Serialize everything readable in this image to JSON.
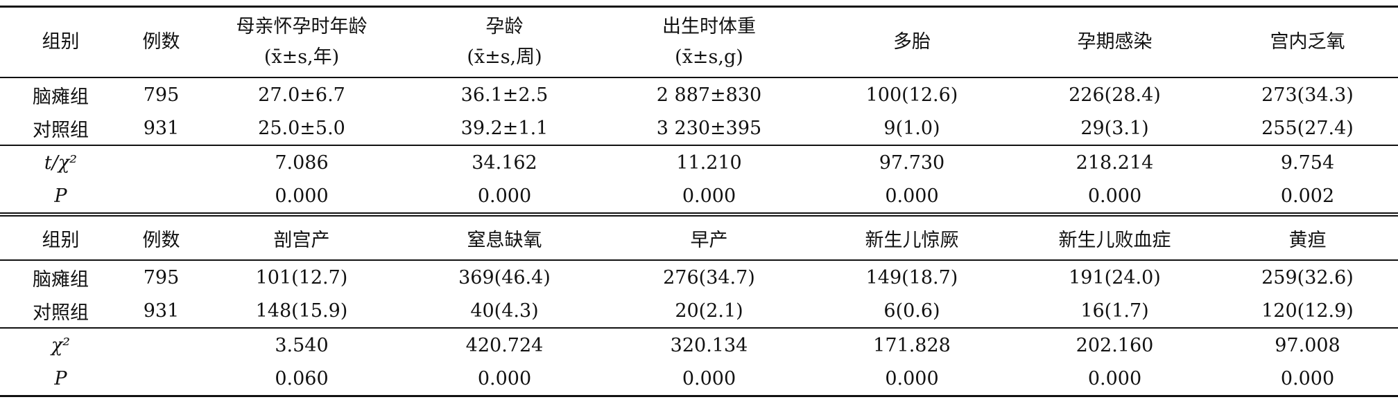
{
  "table1": {
    "header": [
      [
        "组别"
      ],
      [
        "例数"
      ],
      [
        "母亲怀孕时年龄",
        "(x̄±s,年)"
      ],
      [
        "孕龄",
        "(x̄±s,周)"
      ],
      [
        "出生时体重",
        "(x̄±s,g)"
      ],
      [
        "多胎"
      ],
      [
        "孕期感染"
      ],
      [
        "宫内乏氧"
      ]
    ],
    "groups": [
      [
        "脑瘫组",
        "795",
        "27.0±6.7",
        "36.1±2.5",
        "2 887±830",
        "100(12.6)",
        "226(28.4)",
        "273(34.3)"
      ],
      [
        "对照组",
        "931",
        "25.0±5.0",
        "39.2±1.1",
        "3 230±395",
        "9(1.0)",
        "29(3.1)",
        "255(27.4)"
      ]
    ],
    "stats": [
      {
        "label": "t/χ²",
        "values": [
          "7.086",
          "34.162",
          "11.210",
          "97.730",
          "218.214",
          "9.754"
        ]
      },
      {
        "label": "P",
        "values": [
          "0.000",
          "0.000",
          "0.000",
          "0.000",
          "0.000",
          "0.002"
        ]
      }
    ]
  },
  "table2": {
    "header": [
      [
        "组别"
      ],
      [
        "例数"
      ],
      [
        "剖宫产"
      ],
      [
        "窒息缺氧"
      ],
      [
        "早产"
      ],
      [
        "新生儿惊厥"
      ],
      [
        "新生儿败血症"
      ],
      [
        "黄疸"
      ]
    ],
    "groups": [
      [
        "脑瘫组",
        "795",
        "101(12.7)",
        "369(46.4)",
        "276(34.7)",
        "149(18.7)",
        "191(24.0)",
        "259(32.6)"
      ],
      [
        "对照组",
        "931",
        "148(15.9)",
        "40(4.3)",
        "20(2.1)",
        "6(0.6)",
        "16(1.7)",
        "120(12.9)"
      ]
    ],
    "stats": [
      {
        "label": "χ²",
        "values": [
          "3.540",
          "420.724",
          "320.134",
          "171.828",
          "202.160",
          "97.008"
        ]
      },
      {
        "label": "P",
        "values": [
          "0.060",
          "0.000",
          "0.000",
          "0.000",
          "0.000",
          "0.000"
        ]
      }
    ]
  }
}
